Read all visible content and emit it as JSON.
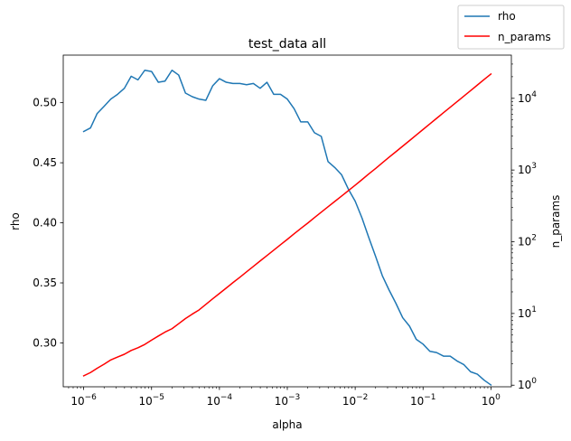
{
  "chart_data": {
    "type": "line",
    "title": "test_data all",
    "xlabel": "alpha",
    "ylabel": "rho",
    "y2label": "n_params",
    "xscale": "log",
    "y2scale": "log",
    "xlim": [
      5e-07,
      2
    ],
    "ylim": [
      0.2635,
      0.5396
    ],
    "y2lim": [
      0.95,
      40000
    ],
    "legend_position": "top-right",
    "grid": false,
    "x_ticks": [
      {
        "value": 1e-06,
        "base": "10",
        "exp": "−6"
      },
      {
        "value": 1e-05,
        "base": "10",
        "exp": "−5"
      },
      {
        "value": 0.0001,
        "base": "10",
        "exp": "−4"
      },
      {
        "value": 0.001,
        "base": "10",
        "exp": "−3"
      },
      {
        "value": 0.01,
        "base": "10",
        "exp": "−2"
      },
      {
        "value": 0.1,
        "base": "10",
        "exp": "−1"
      },
      {
        "value": 1,
        "base": "10",
        "exp": "0"
      }
    ],
    "y_ticks": [
      {
        "value": 0.3,
        "label": "0.30"
      },
      {
        "value": 0.35,
        "label": "0.35"
      },
      {
        "value": 0.4,
        "label": "0.40"
      },
      {
        "value": 0.45,
        "label": "0.45"
      },
      {
        "value": 0.5,
        "label": "0.50"
      }
    ],
    "y2_ticks": [
      {
        "value": 1,
        "base": "10",
        "exp": "0"
      },
      {
        "value": 10,
        "base": "10",
        "exp": "1"
      },
      {
        "value": 100,
        "base": "10",
        "exp": "2"
      },
      {
        "value": 1000,
        "base": "10",
        "exp": "3"
      },
      {
        "value": 10000,
        "base": "10",
        "exp": "4"
      }
    ],
    "series": [
      {
        "name": "rho",
        "color": "#1f77b4",
        "axis": "left",
        "x": [
          1e-06,
          1.26e-06,
          1.58e-06,
          2e-06,
          2.51e-06,
          3.16e-06,
          3.98e-06,
          5.01e-06,
          6.31e-06,
          7.94e-06,
          1e-05,
          1.26e-05,
          1.58e-05,
          2e-05,
          2.51e-05,
          3.16e-05,
          3.98e-05,
          5.01e-05,
          6.31e-05,
          7.94e-05,
          0.0001,
          0.000126,
          0.000158,
          0.0002,
          0.000251,
          0.000316,
          0.000398,
          0.000501,
          0.000631,
          0.000794,
          0.001,
          0.00126,
          0.00158,
          0.002,
          0.00251,
          0.00316,
          0.00398,
          0.00501,
          0.00631,
          0.00794,
          0.01,
          0.0126,
          0.0158,
          0.02,
          0.0251,
          0.0316,
          0.0398,
          0.0501,
          0.0631,
          0.0794,
          0.1,
          0.126,
          0.158,
          0.2,
          0.251,
          0.316,
          0.398,
          0.501,
          0.631,
          0.794,
          1.0
        ],
        "values": [
          0.476,
          0.479,
          0.491,
          0.497,
          0.503,
          0.507,
          0.512,
          0.522,
          0.519,
          0.527,
          0.526,
          0.517,
          0.518,
          0.527,
          0.523,
          0.508,
          0.505,
          0.503,
          0.502,
          0.514,
          0.52,
          0.517,
          0.516,
          0.516,
          0.515,
          0.516,
          0.512,
          0.517,
          0.507,
          0.507,
          0.503,
          0.495,
          0.484,
          0.484,
          0.475,
          0.472,
          0.451,
          0.446,
          0.44,
          0.428,
          0.418,
          0.404,
          0.388,
          0.372,
          0.356,
          0.344,
          0.333,
          0.321,
          0.314,
          0.303,
          0.299,
          0.293,
          0.292,
          0.289,
          0.289,
          0.285,
          0.282,
          0.276,
          0.274,
          0.269,
          0.265
        ]
      },
      {
        "name": "n_params",
        "color": "#ff0000",
        "axis": "right",
        "x": [
          1e-06,
          1.26e-06,
          1.58e-06,
          2e-06,
          2.51e-06,
          3.16e-06,
          3.98e-06,
          5.01e-06,
          6.31e-06,
          7.94e-06,
          1e-05,
          1.26e-05,
          1.58e-05,
          2e-05,
          2.51e-05,
          3.16e-05,
          3.98e-05,
          5.01e-05,
          6.31e-05,
          7.94e-05,
          0.0001,
          0.000126,
          0.000158,
          0.0002,
          0.000251,
          0.000316,
          0.000398,
          0.000501,
          0.000631,
          0.000794,
          0.001,
          0.00126,
          0.00158,
          0.002,
          0.00251,
          0.00316,
          0.00398,
          0.00501,
          0.00631,
          0.00794,
          0.01,
          0.0126,
          0.0158,
          0.02,
          0.0251,
          0.0316,
          0.0398,
          0.0501,
          0.0631,
          0.0794,
          0.1,
          0.126,
          0.158,
          0.2,
          0.251,
          0.316,
          0.398,
          0.501,
          0.631,
          0.794,
          1.0
        ],
        "values": [
          1.35,
          1.5,
          1.72,
          1.96,
          2.25,
          2.47,
          2.7,
          3.05,
          3.33,
          3.7,
          4.25,
          4.85,
          5.5,
          6.13,
          7.2,
          8.5,
          9.8,
          11.2,
          13.4,
          16.0,
          19.0,
          22.6,
          26.9,
          32.0,
          38.1,
          45.3,
          54.0,
          64.2,
          76.4,
          90.9,
          108,
          129,
          153,
          182,
          217,
          258,
          307,
          365,
          434,
          516,
          615,
          735,
          880,
          1050,
          1260,
          1510,
          1800,
          2150,
          2570,
          3070,
          3680,
          4400,
          5250,
          6300,
          7500,
          8950,
          10700,
          12800,
          15300,
          18300,
          21800
        ]
      }
    ]
  }
}
